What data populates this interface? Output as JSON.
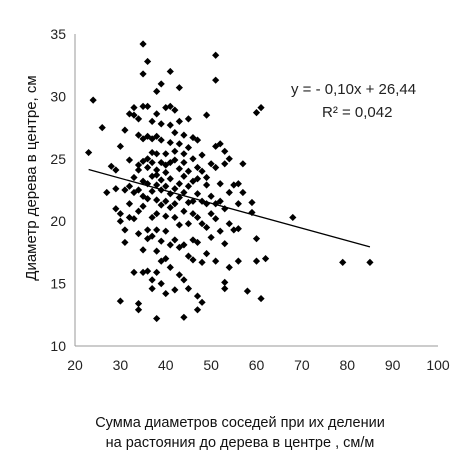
{
  "chart_data": {
    "type": "scatter",
    "xlabel_lines": [
      "Сумма диаметров соседей при их делении",
      "на растояния до дерева в центре ,  см/м"
    ],
    "ylabel": "Диаметр  дерева в центре, см",
    "xlim": [
      20,
      100
    ],
    "ylim": [
      10,
      35
    ],
    "xticks": [
      20,
      30,
      40,
      50,
      60,
      70,
      80,
      90,
      100
    ],
    "yticks": [
      10,
      15,
      20,
      25,
      30,
      35
    ],
    "x_tick_labels": [
      "20",
      "30",
      "40",
      "50",
      "60",
      "70",
      "80",
      "90",
      "100"
    ],
    "y_tick_labels": [
      "10",
      "15",
      "20",
      "25",
      "30",
      "35"
    ],
    "grid": false,
    "marker": "diamond",
    "marker_color": "#000000",
    "trendline": {
      "slope": -0.1,
      "intercept": 26.44,
      "x_range": [
        23,
        85
      ]
    },
    "annotations": {
      "equation": "y = - 0,10x + 26,44",
      "r_squared": "R² = 0,042"
    },
    "series": [
      {
        "points": [
          [
            23,
            25.5
          ],
          [
            24,
            29.7
          ],
          [
            26,
            27.5
          ],
          [
            27,
            22.3
          ],
          [
            28,
            24.4
          ],
          [
            29,
            24.1
          ],
          [
            29,
            22.6
          ],
          [
            29,
            21.0
          ],
          [
            30,
            20.0
          ],
          [
            30,
            20.6
          ],
          [
            30,
            26.0
          ],
          [
            30,
            13.6
          ],
          [
            31,
            27.3
          ],
          [
            31,
            22.5
          ],
          [
            31,
            19.3
          ],
          [
            31,
            18.3
          ],
          [
            32,
            28.6
          ],
          [
            32,
            24.9
          ],
          [
            32,
            22.8
          ],
          [
            32,
            21.4
          ],
          [
            32,
            20.3
          ],
          [
            33,
            29.1
          ],
          [
            33,
            28.5
          ],
          [
            33,
            23.5
          ],
          [
            33,
            22.3
          ],
          [
            33,
            20.2
          ],
          [
            33,
            15.9
          ],
          [
            34,
            28.2
          ],
          [
            34,
            26.9
          ],
          [
            34,
            24.5
          ],
          [
            34,
            24.1
          ],
          [
            34,
            22.5
          ],
          [
            34,
            20.8
          ],
          [
            34,
            19.0
          ],
          [
            34,
            13.4
          ],
          [
            34,
            12.9
          ],
          [
            35,
            34.2
          ],
          [
            35,
            31.8
          ],
          [
            35,
            29.2
          ],
          [
            35,
            26.6
          ],
          [
            35,
            24.8
          ],
          [
            35,
            23.2
          ],
          [
            35,
            22.0
          ],
          [
            35,
            21.2
          ],
          [
            35,
            17.7
          ],
          [
            35,
            15.9
          ],
          [
            36,
            32.8
          ],
          [
            36,
            29.2
          ],
          [
            36,
            26.8
          ],
          [
            36,
            25.0
          ],
          [
            36,
            24.3
          ],
          [
            36,
            23.0
          ],
          [
            36,
            21.8
          ],
          [
            36,
            19.3
          ],
          [
            36,
            18.6
          ],
          [
            36,
            16.0
          ],
          [
            37,
            28.0
          ],
          [
            37,
            26.6
          ],
          [
            37,
            25.5
          ],
          [
            37,
            24.7
          ],
          [
            37,
            23.6
          ],
          [
            37,
            22.4
          ],
          [
            37,
            20.3
          ],
          [
            37,
            18.8
          ],
          [
            37,
            15.3
          ],
          [
            37,
            14.6
          ],
          [
            38,
            30.4
          ],
          [
            38,
            28.6
          ],
          [
            38,
            26.8
          ],
          [
            38,
            25.4
          ],
          [
            38,
            24.1
          ],
          [
            38,
            23.7
          ],
          [
            38,
            22.9
          ],
          [
            38,
            21.7
          ],
          [
            38,
            20.6
          ],
          [
            38,
            19.3
          ],
          [
            38,
            17.6
          ],
          [
            38,
            15.9
          ],
          [
            38,
            12.2
          ],
          [
            39,
            31.0
          ],
          [
            39,
            27.8
          ],
          [
            39,
            26.5
          ],
          [
            39,
            24.7
          ],
          [
            39,
            23.3
          ],
          [
            39,
            22.5
          ],
          [
            39,
            21.3
          ],
          [
            39,
            18.4
          ],
          [
            39,
            16.8
          ],
          [
            39,
            15.0
          ],
          [
            40,
            29.1
          ],
          [
            40,
            25.4
          ],
          [
            40,
            24.5
          ],
          [
            40,
            23.9
          ],
          [
            40,
            22.8
          ],
          [
            40,
            21.6
          ],
          [
            40,
            20.4
          ],
          [
            40,
            19.2
          ],
          [
            40,
            17.0
          ],
          [
            40,
            14.2
          ],
          [
            41,
            32.0
          ],
          [
            41,
            29.2
          ],
          [
            41,
            27.7
          ],
          [
            41,
            26.3
          ],
          [
            41,
            24.7
          ],
          [
            41,
            23.4
          ],
          [
            41,
            22.2
          ],
          [
            41,
            21.1
          ],
          [
            41,
            18.1
          ],
          [
            41,
            16.3
          ],
          [
            42,
            28.9
          ],
          [
            42,
            27.1
          ],
          [
            42,
            25.6
          ],
          [
            42,
            24.9
          ],
          [
            42,
            22.6
          ],
          [
            42,
            21.4
          ],
          [
            42,
            20.3
          ],
          [
            42,
            18.5
          ],
          [
            42,
            14.5
          ],
          [
            43,
            30.7
          ],
          [
            43,
            28.0
          ],
          [
            43,
            26.2
          ],
          [
            43,
            24.2
          ],
          [
            43,
            23.0
          ],
          [
            43,
            21.9
          ],
          [
            43,
            19.7
          ],
          [
            43,
            17.9
          ],
          [
            43,
            15.7
          ],
          [
            44,
            26.9
          ],
          [
            44,
            25.4
          ],
          [
            44,
            24.7
          ],
          [
            44,
            23.6
          ],
          [
            44,
            22.3
          ],
          [
            44,
            20.8
          ],
          [
            44,
            18.1
          ],
          [
            44,
            15.3
          ],
          [
            44,
            12.3
          ],
          [
            45,
            28.2
          ],
          [
            45,
            25.9
          ],
          [
            45,
            24.0
          ],
          [
            45,
            22.8
          ],
          [
            45,
            21.5
          ],
          [
            45,
            19.8
          ],
          [
            45,
            17.2
          ],
          [
            45,
            14.6
          ],
          [
            46,
            26.7
          ],
          [
            46,
            25.0
          ],
          [
            46,
            23.2
          ],
          [
            46,
            21.6
          ],
          [
            46,
            20.6
          ],
          [
            46,
            18.5
          ],
          [
            46,
            16.9
          ],
          [
            47,
            26.5
          ],
          [
            47,
            24.3
          ],
          [
            47,
            23.4
          ],
          [
            47,
            22.2
          ],
          [
            47,
            20.3
          ],
          [
            47,
            18.3
          ],
          [
            47,
            14.0
          ],
          [
            47,
            12.9
          ],
          [
            48,
            25.3
          ],
          [
            48,
            24.0
          ],
          [
            48,
            21.6
          ],
          [
            48,
            19.8
          ],
          [
            48,
            16.7
          ],
          [
            48,
            13.5
          ],
          [
            49,
            28.5
          ],
          [
            49,
            23.5
          ],
          [
            49,
            22.9
          ],
          [
            49,
            21.4
          ],
          [
            49,
            19.5
          ],
          [
            49,
            17.4
          ],
          [
            50,
            24.6
          ],
          [
            50,
            22.0
          ],
          [
            50,
            20.6
          ],
          [
            50,
            18.7
          ],
          [
            51,
            33.3
          ],
          [
            51,
            31.3
          ],
          [
            51,
            26.0
          ],
          [
            51,
            24.3
          ],
          [
            51,
            21.4
          ],
          [
            51,
            20.2
          ],
          [
            51,
            16.8
          ],
          [
            52,
            26.2
          ],
          [
            52,
            23.0
          ],
          [
            52,
            21.6
          ],
          [
            52,
            19.2
          ],
          [
            53,
            25.6
          ],
          [
            53,
            24.6
          ],
          [
            53,
            21.0
          ],
          [
            53,
            18.2
          ],
          [
            53,
            15.1
          ],
          [
            53,
            14.6
          ],
          [
            54,
            25.0
          ],
          [
            54,
            22.3
          ],
          [
            54,
            19.8
          ],
          [
            54,
            16.3
          ],
          [
            55,
            22.9
          ],
          [
            55,
            19.3
          ],
          [
            56,
            23.0
          ],
          [
            56,
            21.4
          ],
          [
            56,
            19.4
          ],
          [
            56,
            16.8
          ],
          [
            57,
            24.6
          ],
          [
            57,
            22.3
          ],
          [
            58,
            14.4
          ],
          [
            59,
            20.7
          ],
          [
            59,
            21.5
          ],
          [
            60,
            28.7
          ],
          [
            60,
            18.6
          ],
          [
            60,
            16.8
          ],
          [
            61,
            29.1
          ],
          [
            61,
            13.8
          ],
          [
            62,
            17.0
          ],
          [
            68,
            20.3
          ],
          [
            79,
            16.7
          ],
          [
            85,
            16.7
          ]
        ]
      }
    ]
  }
}
